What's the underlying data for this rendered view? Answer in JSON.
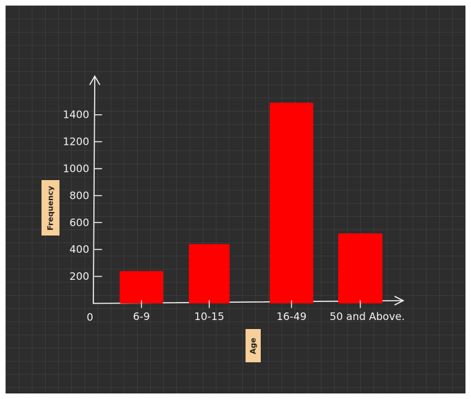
{
  "chart_data": {
    "type": "bar",
    "categories": [
      "6-9",
      "10-15",
      "16-49",
      "50 and Above."
    ],
    "values": [
      240,
      440,
      1490,
      520
    ],
    "xlabel": "Age",
    "ylabel": "Frequency",
    "origin_label": "0",
    "yticks": [
      {
        "value": 200,
        "label": "200"
      },
      {
        "value": 400,
        "label": "400"
      },
      {
        "value": 600,
        "label": "600"
      },
      {
        "value": 800,
        "label": "800"
      },
      {
        "value": 1000,
        "label": "1000"
      },
      {
        "value": 1200,
        "label": "1200"
      },
      {
        "value": 1400,
        "label": "1400"
      }
    ],
    "ylim": [
      0,
      1500
    ],
    "bar_color": "#ff0000",
    "background_color": "#2d2d2d",
    "axis_color": "#f2f2f2",
    "label_box_color": "#f7cf98",
    "grid": true
  }
}
